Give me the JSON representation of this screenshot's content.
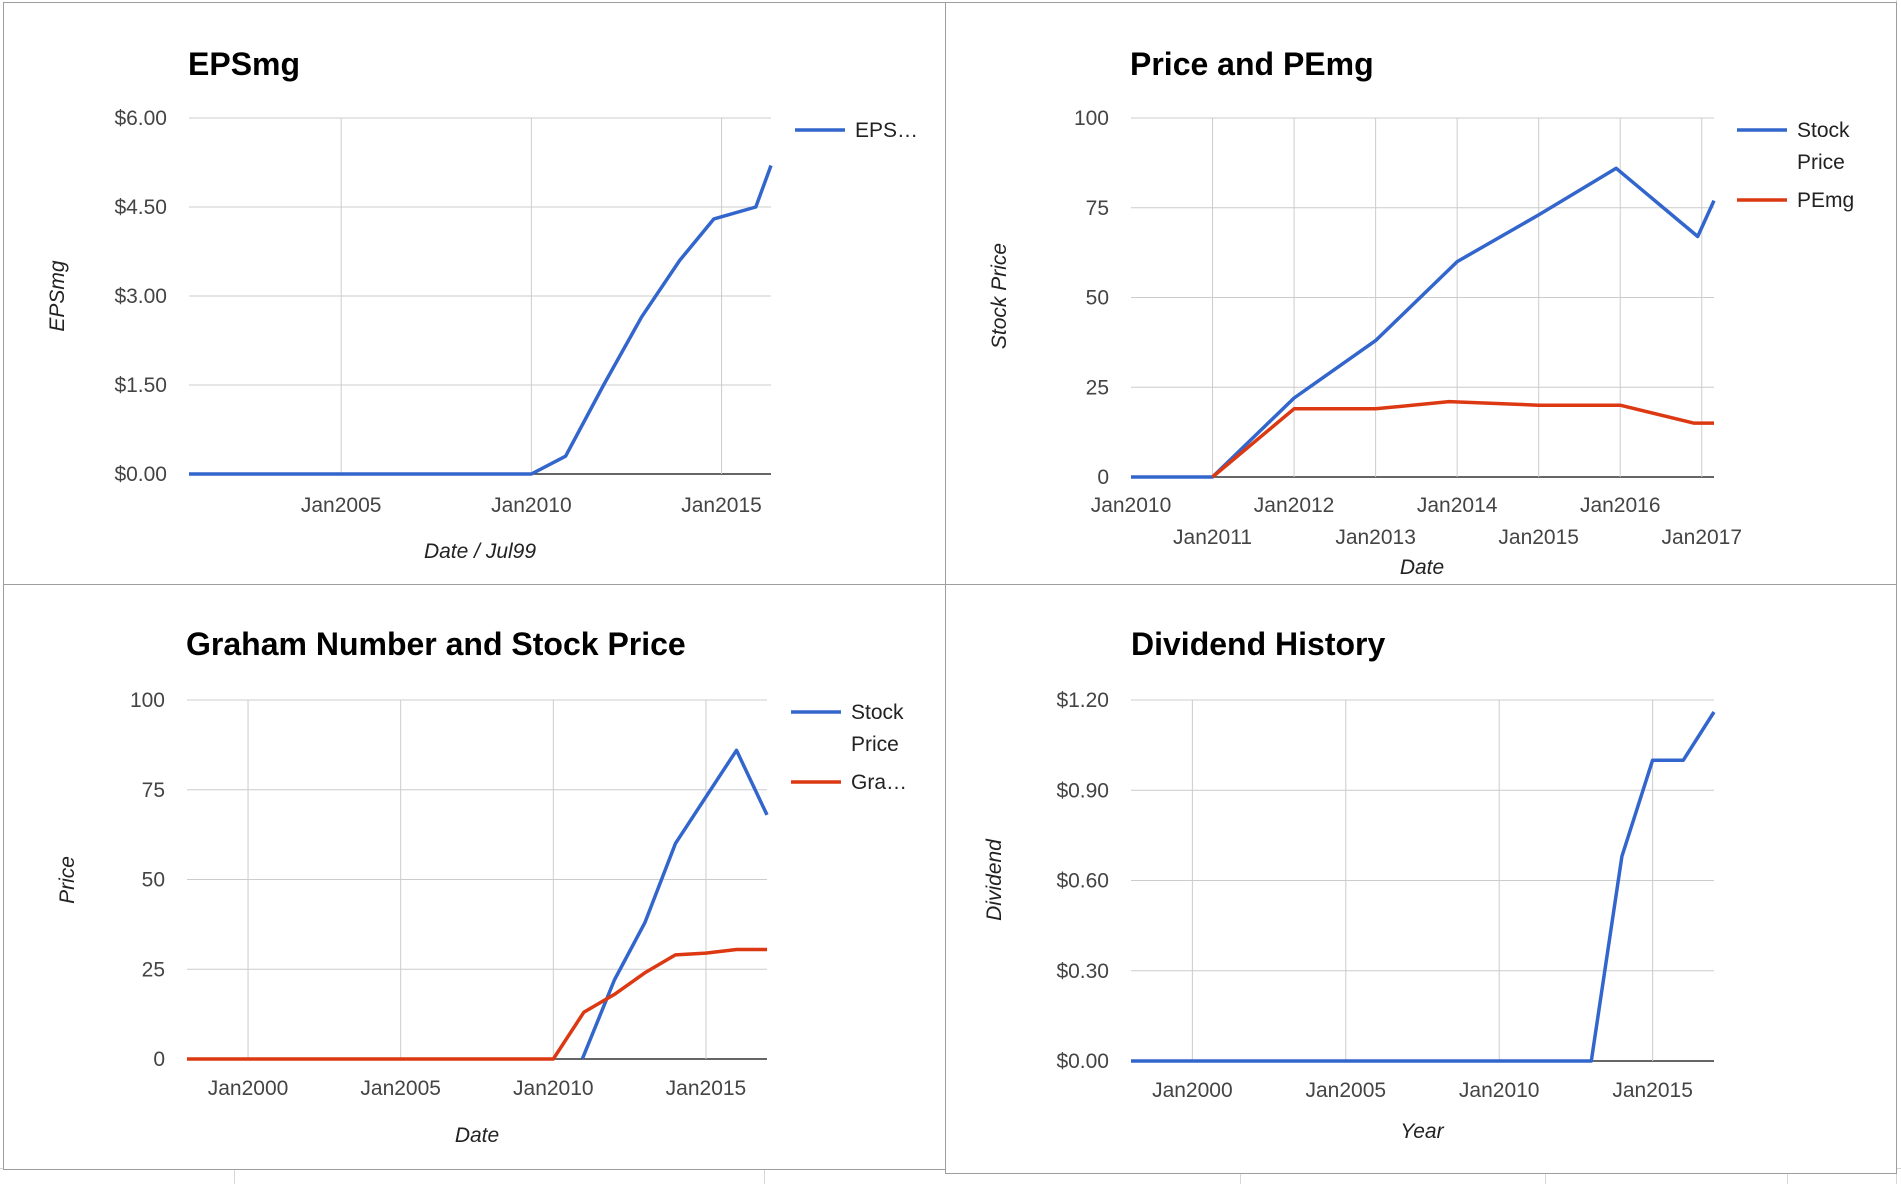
{
  "chart_data": [
    {
      "id": "eps",
      "type": "line",
      "title": "EPSmg",
      "xlabel": "Date / Jul99",
      "ylabel": "EPSmg",
      "xlim": [
        2001.0,
        2016.3
      ],
      "ylim": [
        0,
        6
      ],
      "x_ticks": [
        2005,
        2010,
        2015
      ],
      "x_tick_labels": [
        "Jan2005",
        "Jan2010",
        "Jan2015"
      ],
      "y_ticks": [
        0,
        1.5,
        3,
        4.5,
        6
      ],
      "y_tick_labels": [
        "$0.00",
        "$1.50",
        "$3.00",
        "$4.50",
        "$6.00"
      ],
      "grid": true,
      "legend_position": "right",
      "series": [
        {
          "name": "EPS…",
          "color": "#3366cc",
          "points": [
            [
              2001.0,
              0
            ],
            [
              2010.0,
              0
            ],
            [
              2010.9,
              0.3
            ],
            [
              2011.9,
              1.5
            ],
            [
              2012.9,
              2.65
            ],
            [
              2013.9,
              3.6
            ],
            [
              2014.8,
              4.3
            ],
            [
              2015.9,
              4.5
            ],
            [
              2016.3,
              5.2
            ]
          ]
        }
      ]
    },
    {
      "id": "pe",
      "type": "line",
      "title": "Price and PEmg",
      "xlabel": "Date",
      "ylabel": "Stock Price",
      "xlim": [
        2010.0,
        2017.15
      ],
      "ylim": [
        0,
        100
      ],
      "x_ticks": [
        2010,
        2011,
        2012,
        2013,
        2014,
        2015,
        2016,
        2017
      ],
      "x_tick_labels": [
        "Jan2010",
        "Jan2011",
        "Jan2012",
        "Jan2013",
        "Jan2014",
        "Jan2015",
        "Jan2016",
        "Jan2017"
      ],
      "y_ticks": [
        0,
        25,
        50,
        75,
        100
      ],
      "y_tick_labels": [
        "0",
        "25",
        "50",
        "75",
        "100"
      ],
      "grid": true,
      "legend_position": "right",
      "series": [
        {
          "name": "Stock Price",
          "color": "#3366cc",
          "points": [
            [
              2010.0,
              0
            ],
            [
              2011.0,
              0
            ],
            [
              2012.0,
              22
            ],
            [
              2013.0,
              38
            ],
            [
              2014.0,
              60
            ],
            [
              2015.0,
              73
            ],
            [
              2015.95,
              86
            ],
            [
              2016.95,
              67
            ],
            [
              2017.15,
              77
            ]
          ]
        },
        {
          "name": "PEmg",
          "color": "#dc3912",
          "points": [
            [
              2011.0,
              0
            ],
            [
              2012.0,
              19
            ],
            [
              2013.0,
              19
            ],
            [
              2013.9,
              21
            ],
            [
              2015.0,
              20
            ],
            [
              2016.0,
              20
            ],
            [
              2016.9,
              15
            ],
            [
              2017.15,
              15
            ]
          ]
        }
      ]
    },
    {
      "id": "graham",
      "type": "line",
      "title": "Graham Number and Stock Price",
      "xlabel": "Date",
      "ylabel": "Price",
      "xlim": [
        1998.0,
        2017.0
      ],
      "ylim": [
        0,
        100
      ],
      "x_ticks": [
        2000,
        2005,
        2010,
        2015
      ],
      "x_tick_labels": [
        "Jan2000",
        "Jan2005",
        "Jan2010",
        "Jan2015"
      ],
      "y_ticks": [
        0,
        25,
        50,
        75,
        100
      ],
      "y_tick_labels": [
        "0",
        "25",
        "50",
        "75",
        "100"
      ],
      "grid": true,
      "legend_position": "right",
      "series": [
        {
          "name": "Stock Price",
          "color": "#3366cc",
          "points": [
            [
              2010.95,
              0
            ],
            [
              2012.0,
              22
            ],
            [
              2013.0,
              38
            ],
            [
              2014.0,
              60
            ],
            [
              2015.0,
              73
            ],
            [
              2016.0,
              86
            ],
            [
              2017.0,
              68
            ]
          ]
        },
        {
          "name": "Gra…",
          "color": "#dc3912",
          "points": [
            [
              1998.0,
              0
            ],
            [
              2010.0,
              0
            ],
            [
              2011.0,
              13
            ],
            [
              2012.0,
              18
            ],
            [
              2013.0,
              24
            ],
            [
              2014.0,
              29
            ],
            [
              2015.0,
              29.5
            ],
            [
              2016.0,
              30.5
            ],
            [
              2017.0,
              30.5
            ]
          ]
        }
      ]
    },
    {
      "id": "dividend",
      "type": "line",
      "title": "Dividend History",
      "xlabel": "Year",
      "ylabel": "Dividend",
      "xlim": [
        1998.0,
        2017.0
      ],
      "ylim": [
        0,
        1.2
      ],
      "x_ticks": [
        2000,
        2005,
        2010,
        2015
      ],
      "x_tick_labels": [
        "Jan2000",
        "Jan2005",
        "Jan2010",
        "Jan2015"
      ],
      "y_ticks": [
        0,
        0.3,
        0.6,
        0.9,
        1.2
      ],
      "y_tick_labels": [
        "$0.00",
        "$0.30",
        "$0.60",
        "$0.90",
        "$1.20"
      ],
      "grid": true,
      "legend_position": "none",
      "series": [
        {
          "name": "",
          "color": "#3366cc",
          "points": [
            [
              1998.0,
              0
            ],
            [
              2013.0,
              0
            ],
            [
              2014.0,
              0.68
            ],
            [
              2015.0,
              1.0
            ],
            [
              2016.0,
              1.0
            ],
            [
              2017.0,
              1.16
            ]
          ]
        }
      ]
    }
  ]
}
